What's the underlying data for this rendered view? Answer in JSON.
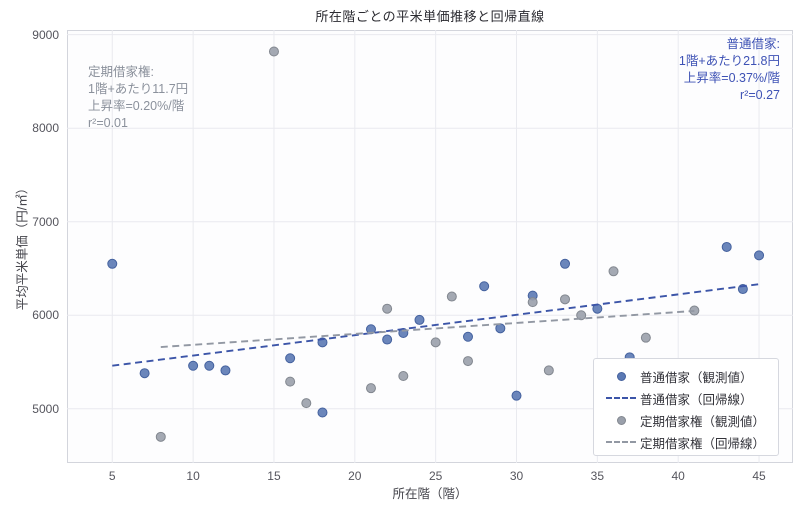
{
  "title": "所在階ごとの平米単価推移と回帰直線",
  "colors": {
    "ordinary_point": "#5b79b4",
    "ordinary_point_edge": "#44619e",
    "ordinary_line": "#3c55a8",
    "ordinary_text": "#3e52b5",
    "fixed_point": "#9aa0ab",
    "fixed_point_edge": "#82878f",
    "fixed_line": "#9298a3",
    "fixed_text": "#8b919c",
    "grid": "#e9eaef",
    "plot_border": "#d3d5dc"
  },
  "chart_data": {
    "type": "scatter",
    "title": "所在階ごとの平米単価推移と回帰直線",
    "xlabel": "所在階（階）",
    "ylabel": "平均平米単価（円/㎡）",
    "xlim": [
      2.2,
      47.1
    ],
    "ylim": [
      4420,
      9050
    ],
    "x_ticks": [
      5,
      10,
      15,
      20,
      25,
      30,
      35,
      40,
      45
    ],
    "y_ticks": [
      5000,
      6000,
      7000,
      8000,
      9000
    ],
    "grid": true,
    "legend_position": "lower right",
    "series": [
      {
        "name": "普通借家（観測値）",
        "type": "scatter",
        "color": "#5b79b4",
        "points": [
          [
            5,
            6550
          ],
          [
            7,
            5380
          ],
          [
            10,
            5460
          ],
          [
            11,
            5460
          ],
          [
            12,
            5410
          ],
          [
            16,
            5540
          ],
          [
            18,
            5710
          ],
          [
            18,
            4960
          ],
          [
            21,
            5850
          ],
          [
            22,
            5740
          ],
          [
            23,
            5810
          ],
          [
            24,
            5950
          ],
          [
            27,
            5770
          ],
          [
            28,
            6310
          ],
          [
            29,
            5860
          ],
          [
            30,
            5140
          ],
          [
            31,
            6210
          ],
          [
            33,
            6550
          ],
          [
            35,
            6070
          ],
          [
            37,
            5550
          ],
          [
            43,
            6730
          ],
          [
            44,
            6280
          ],
          [
            45,
            6640
          ]
        ]
      },
      {
        "name": "普通借家（回帰線）",
        "type": "line",
        "dashed": true,
        "color": "#3c55a8",
        "x": [
          5,
          45
        ],
        "y": [
          5460,
          6332
        ]
      },
      {
        "name": "定期借家権（観測値）",
        "type": "scatter",
        "color": "#9aa0ab",
        "points": [
          [
            8,
            4700
          ],
          [
            15,
            8820
          ],
          [
            16,
            5290
          ],
          [
            17,
            5060
          ],
          [
            21,
            5220
          ],
          [
            22,
            6070
          ],
          [
            23,
            5350
          ],
          [
            25,
            5710
          ],
          [
            26,
            6200
          ],
          [
            27,
            5510
          ],
          [
            31,
            6140
          ],
          [
            32,
            5410
          ],
          [
            33,
            6170
          ],
          [
            34,
            6000
          ],
          [
            36,
            6470
          ],
          [
            38,
            5760
          ],
          [
            41,
            6050
          ]
        ]
      },
      {
        "name": "定期借家権（回帰線）",
        "type": "line",
        "dashed": true,
        "color": "#9298a3",
        "x": [
          8,
          41
        ],
        "y": [
          5660,
          6046
        ]
      }
    ],
    "annotations": {
      "ordinary": {
        "lines": [
          "普通借家:",
          "1階+あたり21.8円",
          "上昇率=0.37%/階",
          "r²=0.27"
        ],
        "slope_yen_per_floor": 21.8,
        "rate_percent_per_floor": 0.37,
        "r_squared": 0.27
      },
      "fixed": {
        "lines": [
          "定期借家権:",
          "1階+あたり11.7円",
          "上昇率=0.20%/階",
          "r²=0.01"
        ],
        "slope_yen_per_floor": 11.7,
        "rate_percent_per_floor": 0.2,
        "r_squared": 0.01
      }
    },
    "legend": {
      "items": [
        {
          "label": "普通借家（観測値）",
          "marker": "dot",
          "color": "#5b79b4"
        },
        {
          "label": "普通借家（回帰線）",
          "marker": "dashed-line",
          "color": "#3c55a8"
        },
        {
          "label": "定期借家権（観測値）",
          "marker": "dot",
          "color": "#9aa0ab"
        },
        {
          "label": "定期借家権（回帰線）",
          "marker": "dashed-line",
          "color": "#9298a3"
        }
      ]
    }
  }
}
